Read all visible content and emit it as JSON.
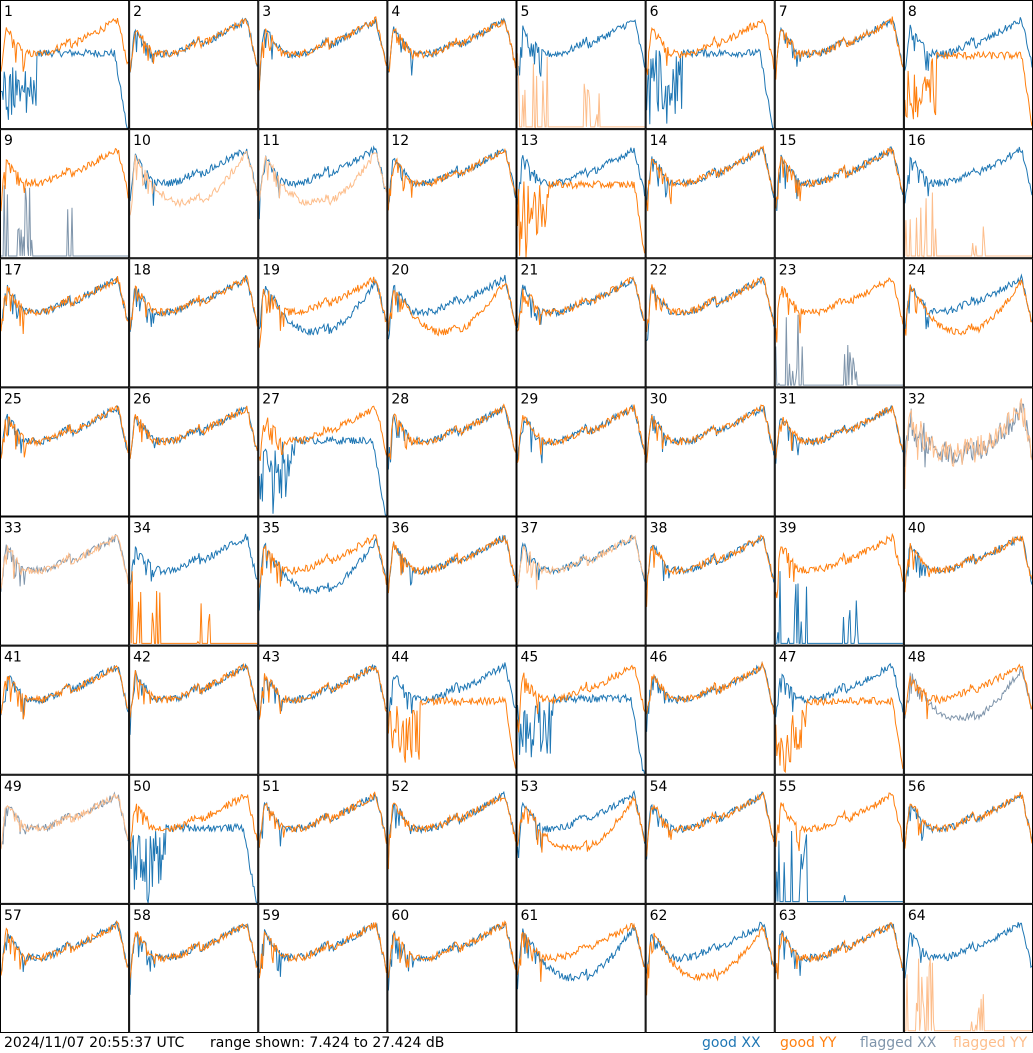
{
  "footer": {
    "timestamp": "2024/11/07 20:55:37 UTC",
    "range_text": "range shown: 7.424 to 27.424 dB",
    "legend": [
      {
        "label": "good XX",
        "color": "#1f77b4"
      },
      {
        "label": "good YY",
        "color": "#ff7f0e"
      },
      {
        "label": "flagged XX",
        "color": "#7f95ab"
      },
      {
        "label": "flagged YY",
        "color": "#fdbe8c"
      }
    ]
  },
  "chart_data": {
    "type": "line",
    "grid": {
      "rows": 8,
      "cols": 8
    },
    "ylim": [
      7.424,
      27.424
    ],
    "yunit": "dB",
    "panels": [
      {
        "label": "1",
        "xx": "g",
        "yy": "g",
        "shape": "droppingXX"
      },
      {
        "label": "2",
        "xx": "g",
        "yy": "g",
        "shape": "normal"
      },
      {
        "label": "3",
        "xx": "g",
        "yy": "g",
        "shape": "normal"
      },
      {
        "label": "4",
        "xx": "g",
        "yy": "g",
        "shape": "normal"
      },
      {
        "label": "5",
        "xx": "g",
        "yy": "f",
        "shape": "deadYY"
      },
      {
        "label": "6",
        "xx": "g",
        "yy": "g",
        "shape": "droppingXX"
      },
      {
        "label": "7",
        "xx": "g",
        "yy": "g",
        "shape": "normal"
      },
      {
        "label": "8",
        "xx": "g",
        "yy": "g",
        "shape": "droppingYY"
      },
      {
        "label": "9",
        "xx": "f",
        "yy": "g",
        "shape": "deadXX"
      },
      {
        "label": "10",
        "xx": "g",
        "yy": "f",
        "shape": "lowYY"
      },
      {
        "label": "11",
        "xx": "g",
        "yy": "f",
        "shape": "lowYY"
      },
      {
        "label": "12",
        "xx": "g",
        "yy": "g",
        "shape": "normal"
      },
      {
        "label": "13",
        "xx": "g",
        "yy": "g",
        "shape": "droppingYY"
      },
      {
        "label": "14",
        "xx": "g",
        "yy": "g",
        "shape": "normal"
      },
      {
        "label": "15",
        "xx": "g",
        "yy": "g",
        "shape": "normal"
      },
      {
        "label": "16",
        "xx": "g",
        "yy": "f",
        "shape": "deadYY"
      },
      {
        "label": "17",
        "xx": "g",
        "yy": "g",
        "shape": "normal"
      },
      {
        "label": "18",
        "xx": "g",
        "yy": "g",
        "shape": "normal"
      },
      {
        "label": "19",
        "xx": "g",
        "yy": "g",
        "shape": "lowXX"
      },
      {
        "label": "20",
        "xx": "g",
        "yy": "g",
        "shape": "lowYY"
      },
      {
        "label": "21",
        "xx": "g",
        "yy": "g",
        "shape": "normal"
      },
      {
        "label": "22",
        "xx": "g",
        "yy": "g",
        "shape": "normal"
      },
      {
        "label": "23",
        "xx": "f",
        "yy": "g",
        "shape": "deadXX"
      },
      {
        "label": "24",
        "xx": "g",
        "yy": "g",
        "shape": "lowYY"
      },
      {
        "label": "25",
        "xx": "g",
        "yy": "g",
        "shape": "normal"
      },
      {
        "label": "26",
        "xx": "g",
        "yy": "g",
        "shape": "normal"
      },
      {
        "label": "27",
        "xx": "g",
        "yy": "g",
        "shape": "droppingXX"
      },
      {
        "label": "28",
        "xx": "g",
        "yy": "g",
        "shape": "normal"
      },
      {
        "label": "29",
        "xx": "g",
        "yy": "g",
        "shape": "normal"
      },
      {
        "label": "30",
        "xx": "g",
        "yy": "g",
        "shape": "normal"
      },
      {
        "label": "31",
        "xx": "g",
        "yy": "g",
        "shape": "normal"
      },
      {
        "label": "32",
        "xx": "f",
        "yy": "f",
        "shape": "flaggedNoisy"
      },
      {
        "label": "33",
        "xx": "f",
        "yy": "f",
        "shape": "normal"
      },
      {
        "label": "34",
        "xx": "g",
        "yy": "g",
        "shape": "deadYY"
      },
      {
        "label": "35",
        "xx": "g",
        "yy": "g",
        "shape": "lowXX"
      },
      {
        "label": "36",
        "xx": "g",
        "yy": "g",
        "shape": "normal"
      },
      {
        "label": "37",
        "xx": "g",
        "yy": "f",
        "shape": "normal"
      },
      {
        "label": "38",
        "xx": "g",
        "yy": "g",
        "shape": "normal"
      },
      {
        "label": "39",
        "xx": "g",
        "yy": "g",
        "shape": "deadXX"
      },
      {
        "label": "40",
        "xx": "g",
        "yy": "g",
        "shape": "normal"
      },
      {
        "label": "41",
        "xx": "g",
        "yy": "g",
        "shape": "normal"
      },
      {
        "label": "42",
        "xx": "g",
        "yy": "g",
        "shape": "normal"
      },
      {
        "label": "43",
        "xx": "g",
        "yy": "g",
        "shape": "normal"
      },
      {
        "label": "44",
        "xx": "g",
        "yy": "g",
        "shape": "droppingYY"
      },
      {
        "label": "45",
        "xx": "g",
        "yy": "g",
        "shape": "droppingXX"
      },
      {
        "label": "46",
        "xx": "g",
        "yy": "g",
        "shape": "normal"
      },
      {
        "label": "47",
        "xx": "g",
        "yy": "g",
        "shape": "droppingYY"
      },
      {
        "label": "48",
        "xx": "f",
        "yy": "g",
        "shape": "lowXX"
      },
      {
        "label": "49",
        "xx": "f",
        "yy": "f",
        "shape": "normal"
      },
      {
        "label": "50",
        "xx": "g",
        "yy": "g",
        "shape": "droppingXX"
      },
      {
        "label": "51",
        "xx": "g",
        "yy": "g",
        "shape": "normal"
      },
      {
        "label": "52",
        "xx": "g",
        "yy": "g",
        "shape": "normal"
      },
      {
        "label": "53",
        "xx": "g",
        "yy": "g",
        "shape": "lowYY"
      },
      {
        "label": "54",
        "xx": "g",
        "yy": "g",
        "shape": "normal"
      },
      {
        "label": "55",
        "xx": "g",
        "yy": "g",
        "shape": "deadXX"
      },
      {
        "label": "56",
        "xx": "g",
        "yy": "g",
        "shape": "normal"
      },
      {
        "label": "57",
        "xx": "g",
        "yy": "g",
        "shape": "normal"
      },
      {
        "label": "58",
        "xx": "g",
        "yy": "g",
        "shape": "normal"
      },
      {
        "label": "59",
        "xx": "g",
        "yy": "g",
        "shape": "normal"
      },
      {
        "label": "60",
        "xx": "g",
        "yy": "g",
        "shape": "normal"
      },
      {
        "label": "61",
        "xx": "g",
        "yy": "g",
        "shape": "lowXX"
      },
      {
        "label": "62",
        "xx": "g",
        "yy": "g",
        "shape": "lowYY"
      },
      {
        "label": "63",
        "xx": "g",
        "yy": "g",
        "shape": "normal"
      },
      {
        "label": "64",
        "xx": "g",
        "yy": "f",
        "shape": "deadYY"
      }
    ]
  }
}
